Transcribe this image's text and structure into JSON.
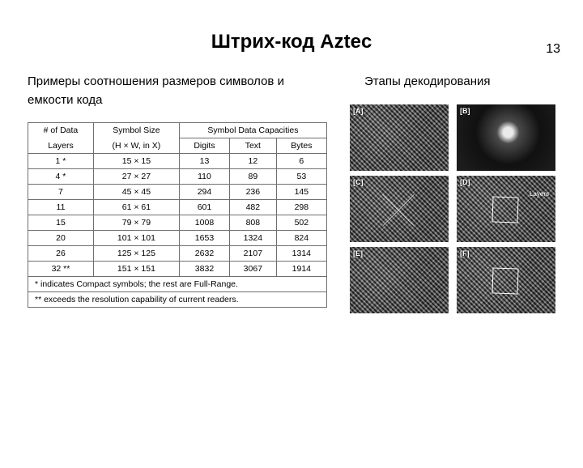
{
  "page_number": "13",
  "title": "Штрих-код Aztec",
  "left_heading": "Примеры соотношения размеров символов и емкости кода",
  "right_heading": "Этапы декодирования",
  "table": {
    "header_row1": {
      "c0a": "# of Data",
      "c1a": "Symbol Size",
      "c2": "Symbol Data Capacities"
    },
    "header_row2": {
      "c0b": "Layers",
      "c1b": "(H × W, in X)",
      "c2a": "Digits",
      "c2b": "Text",
      "c2c": "Bytes"
    },
    "rows": [
      {
        "c0": "1 *",
        "c1": "15 × 15",
        "d": "13",
        "t": "12",
        "b": "6"
      },
      {
        "c0": "4 *",
        "c1": "27 × 27",
        "d": "110",
        "t": "89",
        "b": "53"
      },
      {
        "c0": "7",
        "c1": "45 × 45",
        "d": "294",
        "t": "236",
        "b": "145"
      },
      {
        "c0": "11",
        "c1": "61 × 61",
        "d": "601",
        "t": "482",
        "b": "298"
      },
      {
        "c0": "15",
        "c1": "79 × 79",
        "d": "1008",
        "t": "808",
        "b": "502"
      },
      {
        "c0": "20",
        "c1": "101 × 101",
        "d": "1653",
        "t": "1324",
        "b": "824"
      },
      {
        "c0": "26",
        "c1": "125 × 125",
        "d": "2632",
        "t": "2107",
        "b": "1314"
      },
      {
        "c0": "32 **",
        "c1": "151 × 151",
        "d": "3832",
        "t": "3067",
        "b": "1914"
      }
    ],
    "footnote1": "* indicates Compact symbols; the rest are Full-Range.",
    "footnote2": "** exceeds the resolution capability of current readers."
  },
  "panels": [
    {
      "label": "[A]",
      "extra": ""
    },
    {
      "label": "[B]",
      "extra": ""
    },
    {
      "label": "[C]",
      "extra": ""
    },
    {
      "label": "[D]",
      "extra": "Layers"
    },
    {
      "label": "[E]",
      "extra": ""
    },
    {
      "label": "[F]",
      "extra": ""
    }
  ]
}
